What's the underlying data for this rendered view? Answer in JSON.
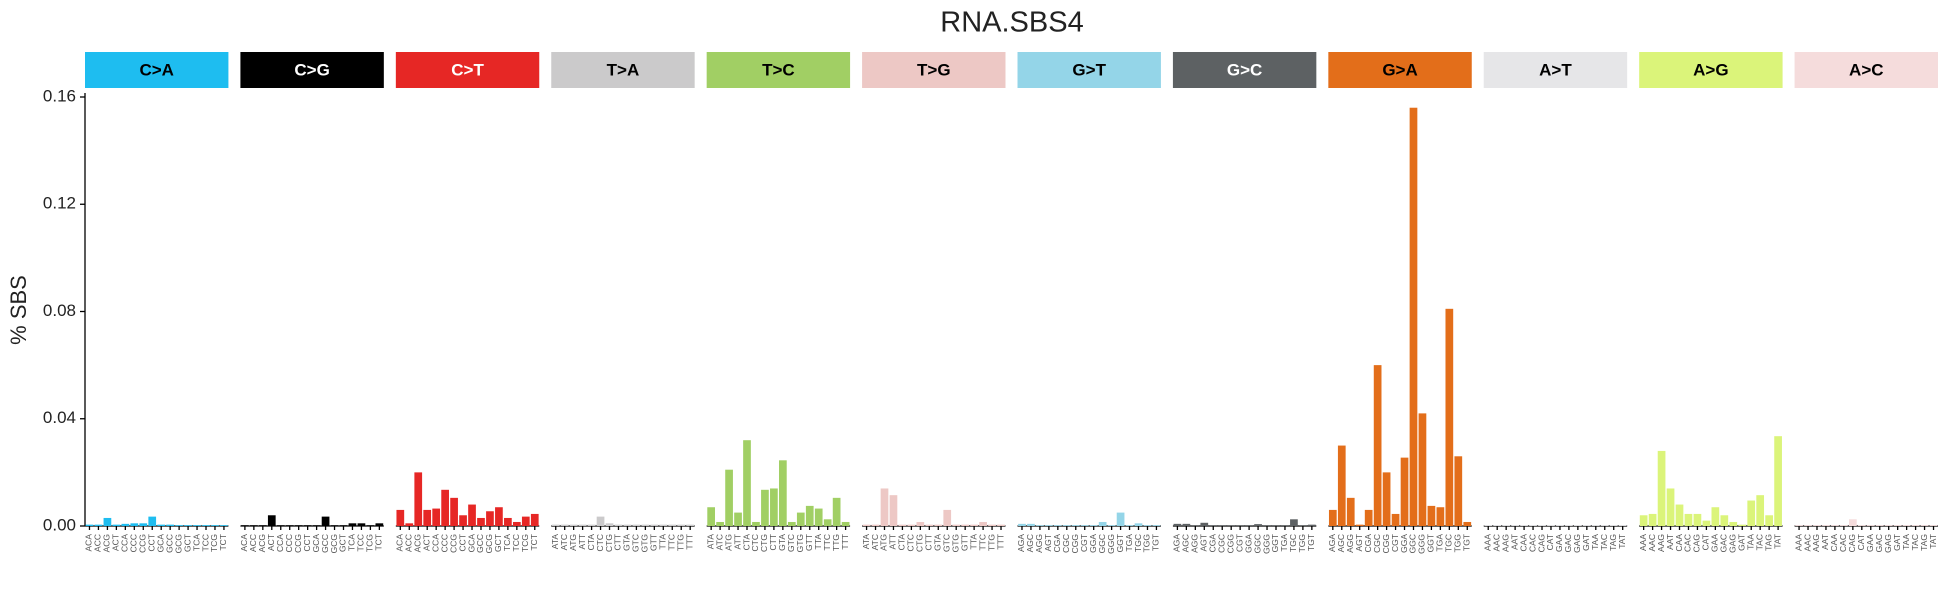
{
  "chart_data": {
    "type": "bar",
    "title": "RNA.SBS4",
    "ylabel": "% SBS",
    "ylim": [
      0,
      0.16
    ],
    "yticks": [
      {
        "value": 0,
        "label": "0.00"
      },
      0.04,
      0.08,
      0.12,
      0.16
    ],
    "panels": [
      {
        "name": "C>A",
        "color": "#1ebdf0",
        "categories": [
          "ACA",
          "ACC",
          "ACG",
          "ACT",
          "CCA",
          "CCC",
          "CCG",
          "CCT",
          "GCA",
          "GCC",
          "GCG",
          "GCT",
          "TCA",
          "TCC",
          "TCG",
          "TCT"
        ],
        "values": [
          0.0005,
          0.0005,
          0.003,
          0.0005,
          0.0008,
          0.001,
          0.001,
          0.0035,
          0.0005,
          0.0005,
          0.0003,
          0.0003,
          0.0003,
          0.0003,
          0.0003,
          0.0003
        ]
      },
      {
        "name": "C>G",
        "color": "#000000",
        "categories": [
          "ACA",
          "ACC",
          "ACG",
          "ACT",
          "CCA",
          "CCC",
          "CCG",
          "CCT",
          "GCA",
          "GCC",
          "GCG",
          "GCT",
          "TCA",
          "TCC",
          "TCG",
          "TCT"
        ],
        "values": [
          0.0003,
          0.0003,
          0.0003,
          0.004,
          0.0003,
          0.0003,
          0.0003,
          0.0003,
          0.0003,
          0.0035,
          0.0003,
          0.0003,
          0.001,
          0.001,
          0.0003,
          0.001
        ]
      },
      {
        "name": "C>T",
        "color": "#e62725",
        "categories": [
          "ACA",
          "ACC",
          "ACG",
          "ACT",
          "CCA",
          "CCC",
          "CCG",
          "CCT",
          "GCA",
          "GCC",
          "GCG",
          "GCT",
          "TCA",
          "TCC",
          "TCG",
          "TCT"
        ],
        "values": [
          0.006,
          0.001,
          0.02,
          0.006,
          0.0065,
          0.0135,
          0.0105,
          0.004,
          0.008,
          0.003,
          0.0055,
          0.007,
          0.003,
          0.0015,
          0.0035,
          0.0045
        ]
      },
      {
        "name": "T>A",
        "color": "#cbcacb",
        "categories": [
          "ATA",
          "ATC",
          "ATG",
          "ATT",
          "CTA",
          "CTC",
          "CTG",
          "CTT",
          "GTA",
          "GTC",
          "GTG",
          "GTT",
          "TTA",
          "TTC",
          "TTG",
          "TTT"
        ],
        "values": [
          0.0005,
          0.0005,
          0.0005,
          0.0005,
          0.0005,
          0.0035,
          0.001,
          0.0005,
          0.0005,
          0.0005,
          0.0005,
          0.0005,
          0.0005,
          0.0005,
          0.0005,
          0.0005
        ]
      },
      {
        "name": "T>C",
        "color": "#a1cf64",
        "categories": [
          "ATA",
          "ATC",
          "ATG",
          "ATT",
          "CTA",
          "CTC",
          "CTG",
          "CTT",
          "GTA",
          "GTC",
          "GTG",
          "GTT",
          "TTA",
          "TTC",
          "TTG",
          "TTT"
        ],
        "values": [
          0.007,
          0.0015,
          0.021,
          0.005,
          0.032,
          0.0015,
          0.0135,
          0.014,
          0.0245,
          0.0015,
          0.005,
          0.0075,
          0.0065,
          0.0025,
          0.0105,
          0.0015
        ]
      },
      {
        "name": "T>G",
        "color": "#edc8c5",
        "categories": [
          "ATA",
          "ATC",
          "ATG",
          "ATT",
          "CTA",
          "CTC",
          "CTG",
          "CTT",
          "GTA",
          "GTC",
          "GTG",
          "GTT",
          "TTA",
          "TTC",
          "TTG",
          "TTT"
        ],
        "values": [
          0.0005,
          0.0005,
          0.014,
          0.0115,
          0.0005,
          0.0005,
          0.0015,
          0.0005,
          0.0005,
          0.006,
          0.0005,
          0.0005,
          0.0005,
          0.0015,
          0.0005,
          0.0005
        ]
      },
      {
        "name": "G>T",
        "color": "#94d5e8",
        "categories": [
          "AGA",
          "AGC",
          "AGG",
          "AGT",
          "CGA",
          "CGC",
          "CGG",
          "CGT",
          "GGA",
          "GGC",
          "GGG",
          "GGT",
          "TGA",
          "TGC",
          "TGG",
          "TGT"
        ],
        "values": [
          0.0008,
          0.0008,
          0.0003,
          0.0003,
          0.0003,
          0.0003,
          0.0003,
          0.0003,
          0.0003,
          0.0015,
          0.0003,
          0.005,
          0.0003,
          0.001,
          0.0003,
          0.0003
        ]
      },
      {
        "name": "G>C",
        "color": "#5d6163",
        "categories": [
          "AGA",
          "AGC",
          "AGG",
          "AGT",
          "CGA",
          "CGC",
          "CGG",
          "CGT",
          "GGA",
          "GGC",
          "GGG",
          "GGT",
          "TGA",
          "TGC",
          "TGG",
          "TGT"
        ],
        "values": [
          0.0008,
          0.0008,
          0.0003,
          0.0012,
          0.0003,
          0.0003,
          0.0003,
          0.0003,
          0.0003,
          0.0007,
          0.0003,
          0.0003,
          0.0003,
          0.0025,
          0.0003,
          0.0005
        ]
      },
      {
        "name": "G>A",
        "color": "#e36e1a",
        "categories": [
          "AGA",
          "AGC",
          "AGG",
          "AGT",
          "CGA",
          "CGC",
          "CGG",
          "CGT",
          "GGA",
          "GGC",
          "GGG",
          "GGT",
          "TGA",
          "TGC",
          "TGG",
          "TGT"
        ],
        "values": [
          0.006,
          0.03,
          0.0105,
          0.0005,
          0.006,
          0.06,
          0.02,
          0.0045,
          0.0255,
          0.156,
          0.042,
          0.0075,
          0.007,
          0.081,
          0.026,
          0.0015
        ]
      },
      {
        "name": "A>T",
        "color": "#e6e6e8",
        "categories": [
          "AAA",
          "AAC",
          "AAG",
          "AAT",
          "CAA",
          "CAC",
          "CAG",
          "CAT",
          "GAA",
          "GAC",
          "GAG",
          "GAT",
          "TAA",
          "TAC",
          "TAG",
          "TAT"
        ],
        "values": [
          0.0003,
          0.0003,
          0.0003,
          0.0003,
          0.0003,
          0.0003,
          0.0003,
          0.0003,
          0.0003,
          0.0003,
          0.0003,
          0.0003,
          0.0003,
          0.0003,
          0.0003,
          0.0003
        ]
      },
      {
        "name": "A>G",
        "color": "#dbf47a",
        "categories": [
          "AAA",
          "AAC",
          "AAG",
          "AAT",
          "CAA",
          "CAC",
          "CAG",
          "CAT",
          "GAA",
          "GAC",
          "GAG",
          "GAT",
          "TAA",
          "TAC",
          "TAG",
          "TAT"
        ],
        "values": [
          0.004,
          0.0045,
          0.028,
          0.014,
          0.008,
          0.0045,
          0.0045,
          0.002,
          0.007,
          0.004,
          0.0015,
          0.0005,
          0.0095,
          0.0115,
          0.004,
          0.0335
        ]
      },
      {
        "name": "A>C",
        "color": "#f5dcdc",
        "categories": [
          "AAA",
          "AAC",
          "AAG",
          "AAT",
          "CAA",
          "CAC",
          "CAG",
          "CAT",
          "GAA",
          "GAC",
          "GAG",
          "GAT",
          "TAA",
          "TAC",
          "TAG",
          "TAT"
        ],
        "values": [
          0.0003,
          0.0003,
          0.0003,
          0.0003,
          0.0003,
          0.0003,
          0.0025,
          0.0003,
          0.0003,
          0.0003,
          0.0003,
          0.0003,
          0.0003,
          0.0003,
          0.0003,
          0.0003
        ]
      }
    ]
  }
}
